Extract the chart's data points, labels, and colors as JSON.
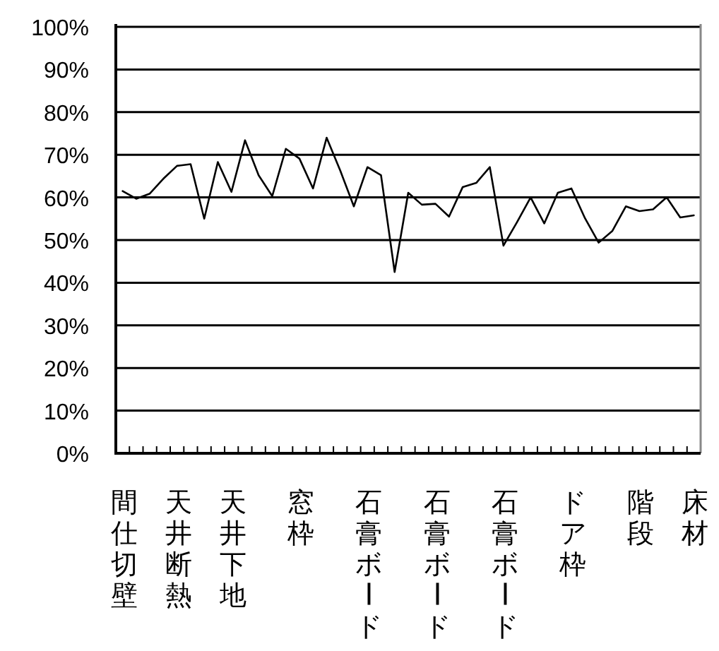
{
  "chart_data": {
    "type": "line",
    "categories": [
      "間仕切壁",
      null,
      null,
      null,
      "天井断熱",
      null,
      null,
      null,
      "天井下地",
      null,
      null,
      null,
      null,
      "窓枠",
      null,
      null,
      null,
      null,
      "石膏ボード",
      null,
      null,
      null,
      null,
      "石膏ボード",
      null,
      null,
      null,
      null,
      "石膏ボード",
      null,
      null,
      null,
      null,
      "ドア枠",
      null,
      null,
      null,
      null,
      "階段",
      null,
      null,
      null,
      "床材"
    ],
    "series": [
      {
        "color": "#000000",
        "values": [
          61.5,
          59.7,
          60.9,
          64.4,
          67.4,
          67.8,
          55.0,
          68.3,
          61.3,
          73.4,
          65.2,
          60.3,
          71.4,
          69.1,
          62.1,
          74.0,
          66.3,
          57.9,
          67.1,
          65.2,
          42.5,
          61.1,
          58.3,
          58.5,
          55.5,
          62.4,
          63.4,
          67.1,
          48.7,
          54.2,
          60.0,
          53.9,
          61.1,
          62.1,
          55.1,
          49.4,
          52.1,
          57.9,
          56.8,
          57.2,
          60.0,
          55.3,
          55.8
        ]
      }
    ],
    "ylim": [
      0,
      100
    ],
    "yticks": [
      {
        "value": 0,
        "label": "0%"
      },
      {
        "value": 10,
        "label": "10%"
      },
      {
        "value": 20,
        "label": "20%"
      },
      {
        "value": 30,
        "label": "30%"
      },
      {
        "value": 40,
        "label": "40%"
      },
      {
        "value": 50,
        "label": "50%"
      },
      {
        "value": 60,
        "label": "60%"
      },
      {
        "value": 70,
        "label": "70%"
      },
      {
        "value": 80,
        "label": "80%"
      },
      {
        "value": 90,
        "label": "90%"
      },
      {
        "value": 100,
        "label": "100%"
      }
    ],
    "grid": "y",
    "marker": "none",
    "line_style": "solid"
  }
}
